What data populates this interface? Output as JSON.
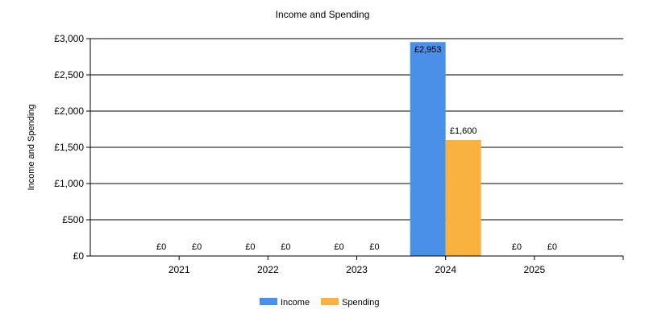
{
  "chart_data": {
    "type": "bar",
    "title": "Income and Spending",
    "xlabel": "",
    "ylabel": "Income and Spending",
    "categories": [
      "2021",
      "2022",
      "2023",
      "2024",
      "2025"
    ],
    "series": [
      {
        "name": "Income",
        "color": "#4a90e8",
        "values": [
          0,
          0,
          0,
          2953,
          0
        ]
      },
      {
        "name": "Spending",
        "color": "#f9b23f",
        "values": [
          0,
          0,
          0,
          1600,
          0
        ]
      }
    ],
    "data_labels": [
      [
        "£0",
        "£0",
        "£0",
        "£2,953",
        "£0"
      ],
      [
        "£0",
        "£0",
        "£0",
        "£1,600",
        "£0"
      ]
    ],
    "yticks": [
      0,
      500,
      1000,
      1500,
      2000,
      2500,
      3000
    ],
    "ytick_labels": [
      "£0",
      "£500",
      "£1,000",
      "£1,500",
      "£2,000",
      "£2,500",
      "£3,000"
    ],
    "ylim": [
      0,
      3000
    ],
    "grid": true,
    "legend_position": "bottom-center"
  }
}
